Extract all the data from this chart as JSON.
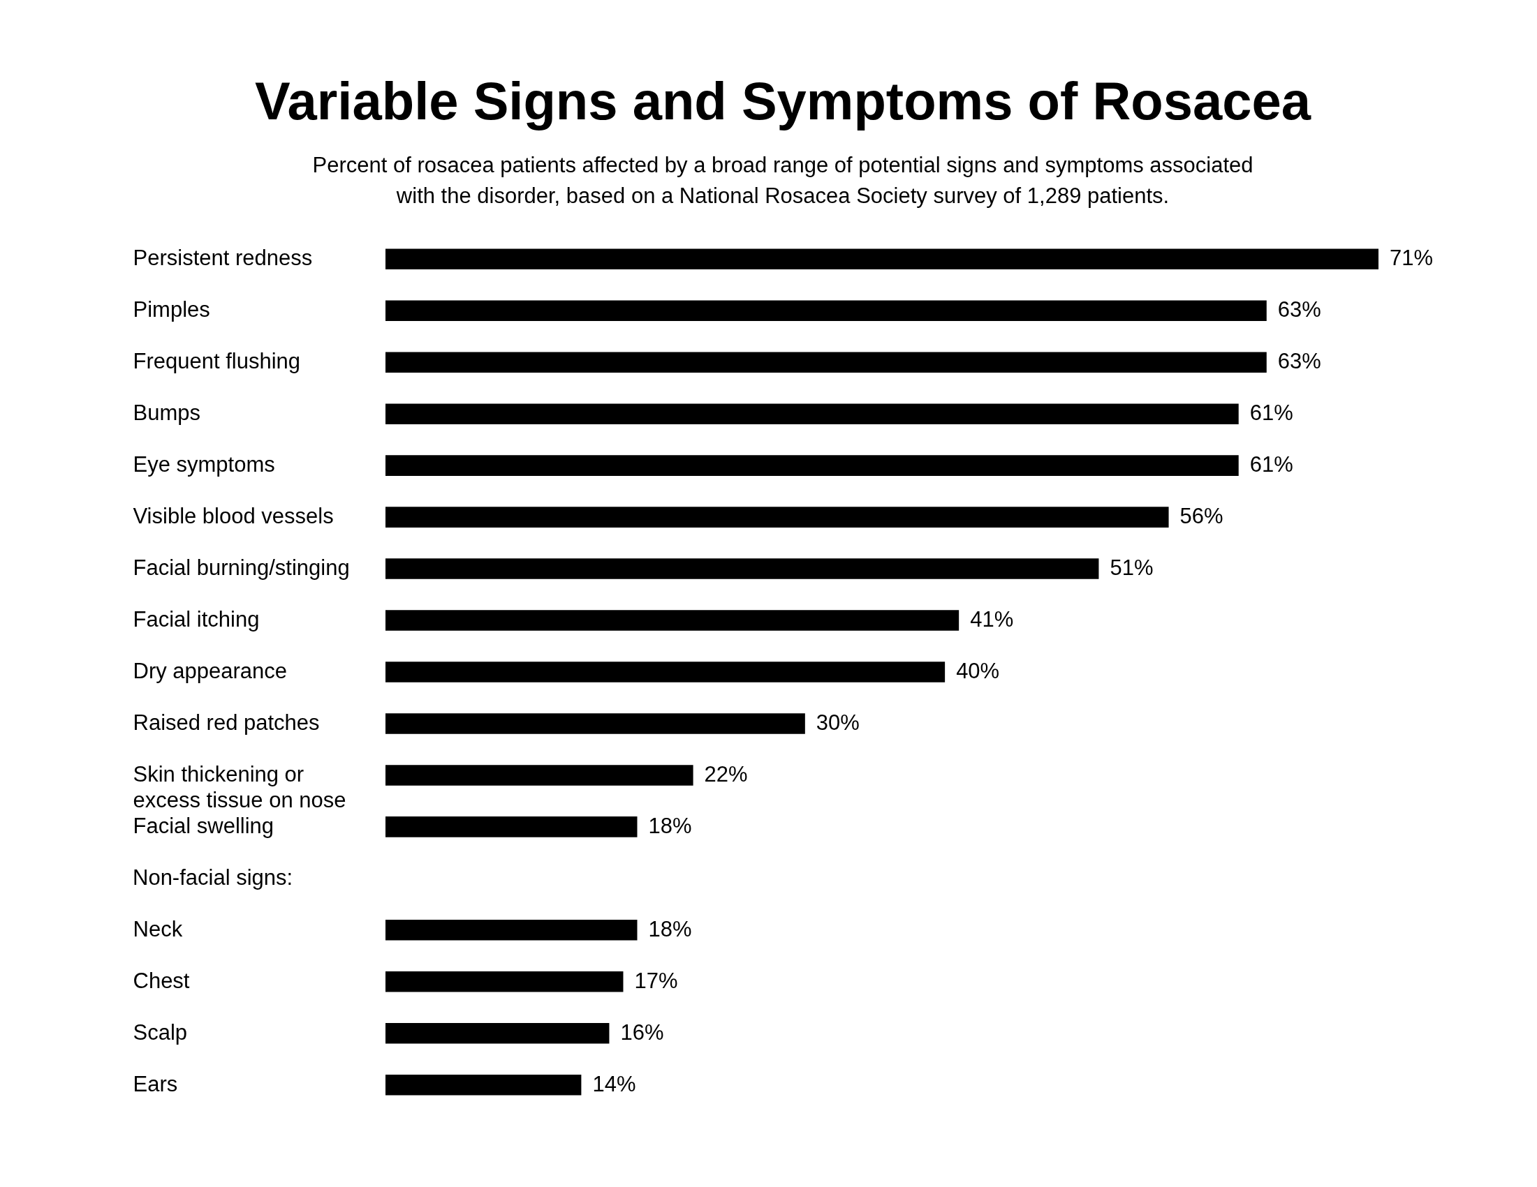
{
  "chart_data": {
    "type": "bar",
    "orientation": "horizontal",
    "title": "Variable Signs and Symptoms of Rosacea",
    "subtitle": "Percent of rosacea patients affected by a broad range of potential signs and symptoms associated with the disorder, based on a National Rosacea Society survey of 1,289 patients.",
    "categories": [
      "Persistent redness",
      "Pimples",
      "Frequent flushing",
      "Bumps",
      "Eye symptoms",
      "Visible blood vessels",
      "Facial burning/stinging",
      "Facial itching",
      "Dry appearance",
      "Raised red patches",
      "Skin thickening or excess tissue on nose",
      "Facial swelling",
      null,
      "Neck",
      "Chest",
      "Scalp",
      "Ears"
    ],
    "values": [
      71,
      63,
      63,
      61,
      61,
      56,
      51,
      41,
      40,
      30,
      22,
      18,
      null,
      18,
      17,
      16,
      14
    ],
    "value_labels": [
      "71%",
      "63%",
      "63%",
      "61%",
      "61%",
      "56%",
      "51%",
      "41%",
      "40%",
      "30%",
      "22%",
      "18%",
      null,
      "18%",
      "17%",
      "16%",
      "14%"
    ],
    "color": "#000000",
    "annotations": [
      "Non-facial signs:"
    ]
  }
}
